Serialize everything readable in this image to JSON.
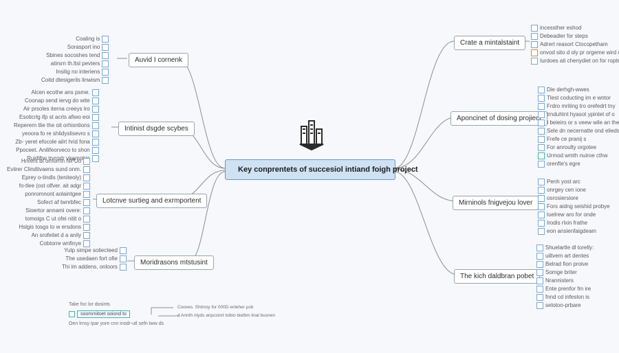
{
  "background_color": "#f6f8fb",
  "center": {
    "label": "Key conprentets of succesiol intiand foigh project"
  },
  "line_color": "#8d8d8d",
  "checkbox_colors": {
    "default": "#78a6d8",
    "orange": "#d88b3a",
    "teal": "#3fb3a9"
  },
  "branches": {
    "right": [
      {
        "id": "r1",
        "label": "Crate a mintalstaint",
        "leaves": [
          "incessther eshod",
          "Debeadier for steps",
          "Adrert reasort Ctocopetham",
          "onvod sito d oly pr orgeme wird os",
          "Iurdoes ati chenydiet on for roptet"
        ],
        "leaf_styles": [
          "",
          "",
          "",
          "orange",
          ""
        ]
      },
      {
        "id": "r2",
        "label": "Aponcinet of dosing projiect",
        "leaves": [
          "Die derhgh-wwes",
          "Tlest coducting im e wntor",
          "Frdro mriting tro orefedrt tny",
          "trnduhtnt hyasot ypintet of o",
          "I beieiro or s veew wile an the",
          "Sele dn necernatte ond elieds",
          "Frefe ce pranij s",
          "For anroulty orgotee",
          "Urmod wmth nuiroe cthw",
          "orenfte's egre"
        ],
        "leaf_styles": [
          "",
          "",
          "",
          "",
          "",
          "",
          "",
          "",
          "teal",
          ""
        ]
      },
      {
        "id": "r3",
        "label": "Mirninols fnigvejou lover",
        "leaves": [
          "Penh yost arc",
          "onrgey cen ione",
          "osrosiersiore",
          "Fors aidng seishid probye",
          "tuelrew aro for onde",
          "Irodis rlxin frathe",
          "eon ansienfaigdeam"
        ],
        "leaf_styles": [
          "",
          "",
          "",
          "",
          "",
          "",
          ""
        ]
      },
      {
        "id": "r4",
        "label": "The kich daldbran pobet",
        "leaves": [
          "Shuelartle dl torelly:",
          "uiltvem art dentes",
          "Belrad fion proive",
          "Somge briter",
          "Nrannisters",
          "Ente prenfor fm ire",
          "fnnd cd infeslon is",
          "seloton-prbare"
        ],
        "leaf_styles": [
          "",
          "",
          "",
          "",
          "",
          "",
          "",
          ""
        ]
      }
    ],
    "left": [
      {
        "id": "l1",
        "label": "Auvid I cornenk",
        "leaves": [
          "Coaling is",
          "Sorasport ino",
          "Sbines socoshes tend",
          "atirsrn th.ltsl pevters",
          "Insilig no interiens",
          "Coitd dtesigerils linwism"
        ],
        "leaf_styles": [
          "",
          "",
          "",
          "",
          "",
          ""
        ]
      },
      {
        "id": "l2",
        "label": "Intinist dsgde scybes",
        "leaves": [
          "Alcen ecothe ans psme.",
          "Coonap send iervg do wite",
          "Air prsoles iterna creeys lro",
          "Esoticrlg ifp st acrls afiwo eoi",
          "Reperern tlie the oit orhisntions",
          "yeoora fo re shlidyslisevro s",
          "Zb- yeret efocole ailrt hrid fona",
          "Ppoceet. Anilifeorveco to shon",
          "Ruidifrw trvrortr viramohie"
        ],
        "leaf_styles": [
          "",
          "",
          "",
          "",
          "",
          "",
          "",
          "",
          ""
        ]
      },
      {
        "id": "l3",
        "label": "Lotcnve surtieg and exrmportent",
        "leaves": [
          "Hnrers bt ornorrtn hiPUo",
          "Eviirer Clindtivaens sund onm.",
          "Eprey o-tindls (teniteoly)",
          "fo-tlee (ost olfver. ait adgr",
          "ponromnont aolaintgee",
          "Sofect af twnrbfec",
          "Sioertor annami overe:",
          "tomoigs C ut ofei nitit o",
          "Hslgis tosgs to w ersdons",
          "An srofeitet d a anily",
          "Cobtorre wnfinye"
        ],
        "leaf_styles": [
          "",
          "",
          "",
          "",
          "",
          "",
          "",
          "",
          "",
          "",
          ""
        ]
      },
      {
        "id": "l4",
        "label": "Moridrasons mtstusint",
        "leaves": [
          "Yutp simpe soliecteed",
          "The usedaen fort ofie",
          "Thi im addens, onloors"
        ],
        "leaf_styles": [
          "",
          "",
          ""
        ]
      }
    ]
  },
  "footer": {
    "line1": "Take foc lor dosints",
    "line2_box": "soomrnitoet soiond to",
    "line3": "Oen lrnsy ipar yore cnn inodr-utl sefn tww ds",
    "note1": "Cooves. Shtmoy for 000D enleher µsb",
    "note2": "d Annth ntyds anpcslort tsibio bielbm linal busnen"
  }
}
